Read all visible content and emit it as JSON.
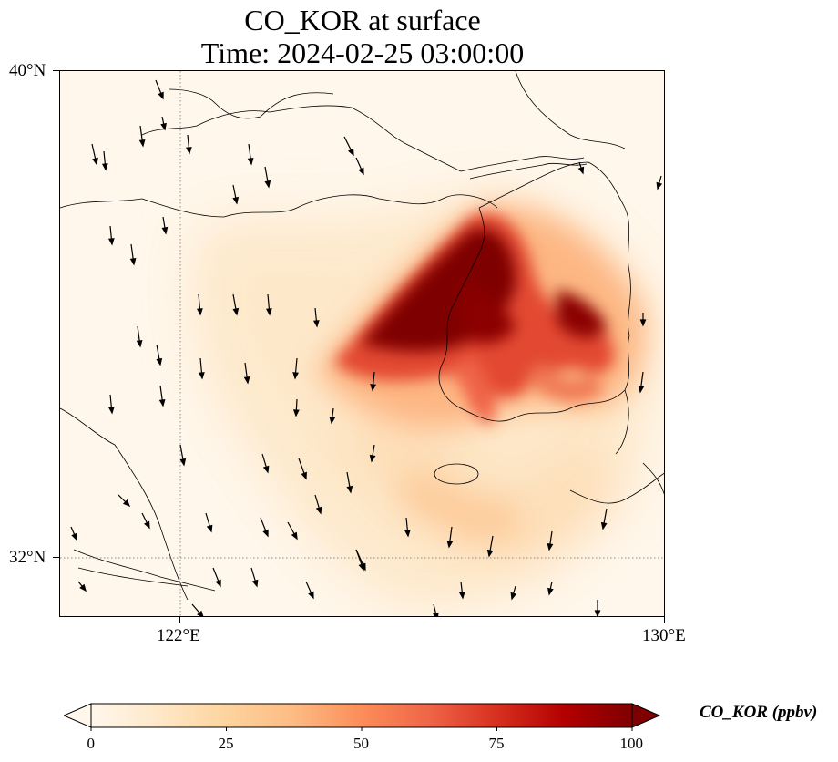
{
  "title": {
    "line1": "CO_KOR at surface",
    "line2": "Time: 2024-02-25 03:00:00"
  },
  "axes": {
    "lat_ticks": [
      {
        "label": "40°N",
        "value": 40
      },
      {
        "label": "32°N",
        "value": 32
      }
    ],
    "lon_ticks": [
      {
        "label": "122°E",
        "value": 122
      },
      {
        "label": "130°E",
        "value": 130
      }
    ],
    "lon_range": [
      120,
      130
    ],
    "lat_range": [
      31,
      40
    ],
    "gridlines": "dotted"
  },
  "colorbar": {
    "label": "CO_KOR (ppbv)",
    "ticks": [
      "0",
      "25",
      "50",
      "75",
      "100"
    ],
    "range": [
      0,
      100
    ],
    "extend": "both",
    "colormap": [
      "#fff7ec",
      "#fee8c8",
      "#fdd49e",
      "#fdbb84",
      "#fc8d59",
      "#ef6548",
      "#d7301f",
      "#b30000",
      "#7f0000"
    ]
  },
  "chart_data": {
    "type": "heatmap",
    "variable": "CO_KOR",
    "units": "ppbv",
    "level": "surface",
    "time": "2024-02-25 03:00:00",
    "plumes": [
      {
        "lon": 126.6,
        "lat": 37.0,
        "value": 100
      },
      {
        "lon": 126.2,
        "lat": 36.6,
        "value": 100
      },
      {
        "lon": 127.0,
        "lat": 36.5,
        "value": 95
      },
      {
        "lon": 128.8,
        "lat": 35.9,
        "value": 100
      },
      {
        "lon": 128.1,
        "lat": 36.2,
        "value": 80
      },
      {
        "lon": 126.9,
        "lat": 35.2,
        "value": 85
      },
      {
        "lon": 128.0,
        "lat": 35.0,
        "value": 70
      },
      {
        "lon": 125.3,
        "lat": 35.6,
        "value": 55
      },
      {
        "lon": 124.0,
        "lat": 34.8,
        "value": 25
      },
      {
        "lon": 122.3,
        "lat": 35.6,
        "value": 12
      },
      {
        "lon": 126.5,
        "lat": 33.2,
        "value": 20
      },
      {
        "lon": 125.0,
        "lat": 32.6,
        "value": 12
      },
      {
        "lon": 127.5,
        "lat": 33.6,
        "value": 20
      }
    ],
    "wind_vectors": "southward flow across the Yellow Sea",
    "colors": {
      "low": "#fff7ec",
      "high": "#7f0000"
    }
  }
}
